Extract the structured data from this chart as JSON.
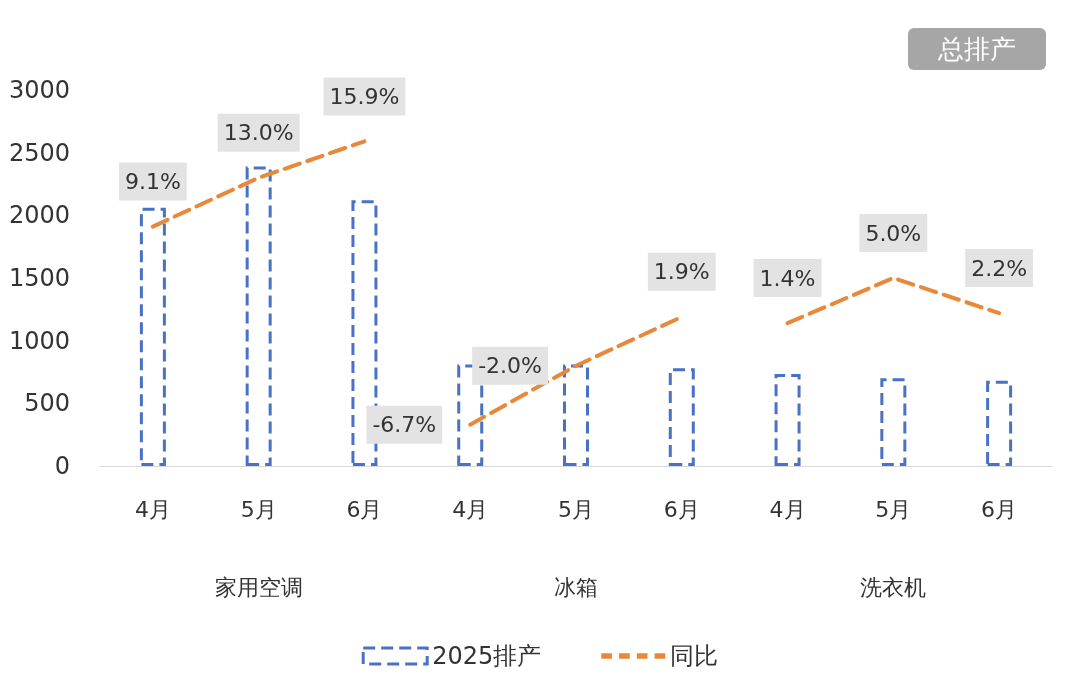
{
  "chart_data": {
    "type": "bar",
    "title": "总排产",
    "categories": [
      "4月",
      "5月",
      "6月",
      "4月",
      "5月",
      "6月",
      "4月",
      "5月",
      "6月"
    ],
    "annotations": [
      "家用空调",
      "冰箱",
      "洗衣机"
    ],
    "series": [
      {
        "name": "2025排产",
        "color": "#4a72c4",
        "line_style": "dashed",
        "values": [
          2060,
          2390,
          2120,
          810,
          810,
          780,
          735,
          700,
          680
        ]
      },
      {
        "name": "同比",
        "type": "line",
        "axis": "y2",
        "color": "#e8883a",
        "line_style": "dashed",
        "marker": "none",
        "values": [
          9.1,
          13.0,
          15.9,
          -6.7,
          -2.0,
          1.9,
          1.4,
          5.0,
          2.2
        ],
        "value_labels": [
          "9.1%",
          "13.0%",
          "15.9%",
          "-6.7%",
          "-2.0%",
          "1.9%",
          "1.4%",
          "5.0%",
          "2.2%"
        ]
      }
    ],
    "ylim": [
      0,
      3000
    ],
    "yticks": [
      0,
      500,
      1000,
      1500,
      2000,
      2500,
      3000
    ],
    "grid": false,
    "legend": "bottom"
  }
}
